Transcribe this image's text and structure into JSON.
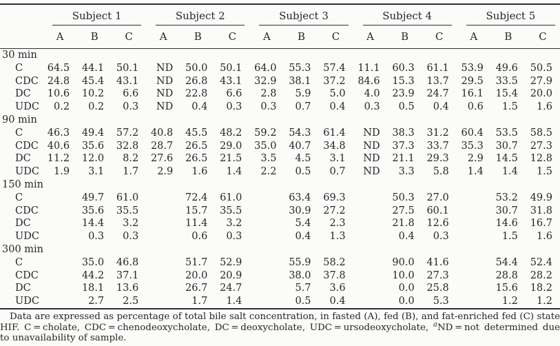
{
  "table": {
    "subjects": [
      "Subject 1",
      "Subject 2",
      "Subject 3",
      "Subject 4",
      "Subject 5"
    ],
    "condition_headers": [
      "A",
      "B",
      "C"
    ],
    "groups": [
      {
        "label": "30 min",
        "rows": [
          {
            "label": "C",
            "values": [
              "64.5",
              "44.1",
              "50.1",
              "ND",
              "50.0",
              "50.1",
              "64.0",
              "55.3",
              "57.4",
              "11.1",
              "60.3",
              "61.1",
              "53.9",
              "49.6",
              "50.5"
            ]
          },
          {
            "label": "CDC",
            "values": [
              "24.8",
              "45.4",
              "43.1",
              "ND",
              "26.8",
              "43.1",
              "32.9",
              "38.1",
              "37.2",
              "84.6",
              "15.3",
              "13.7",
              "29.5",
              "33.5",
              "27.9"
            ]
          },
          {
            "label": "DC",
            "values": [
              "10.6",
              "10.2",
              "6.6",
              "ND",
              "22.8",
              "6.6",
              "2.8",
              "5.9",
              "5.0",
              "4.0",
              "23.9",
              "24.7",
              "16.1",
              "15.4",
              "20.0"
            ]
          },
          {
            "label": "UDC",
            "values": [
              "0.2",
              "0.2",
              "0.3",
              "ND",
              "0.4",
              "0.3",
              "0.3",
              "0.7",
              "0.4",
              "0.3",
              "0.5",
              "0.4",
              "0.6",
              "1.5",
              "1.6"
            ]
          }
        ]
      },
      {
        "label": "90 min",
        "rows": [
          {
            "label": "C",
            "values": [
              "46.3",
              "49.4",
              "57.2",
              "40.8",
              "45.5",
              "48.2",
              "59.2",
              "54.3",
              "61.4",
              "ND",
              "38.3",
              "31.2",
              "60.4",
              "53.5",
              "58.5"
            ]
          },
          {
            "label": "CDC",
            "values": [
              "40.6",
              "35.6",
              "32.8",
              "28.7",
              "26.5",
              "29.0",
              "35.0",
              "40.7",
              "34.8",
              "ND",
              "37.3",
              "33.7",
              "35.3",
              "30.7",
              "27.3"
            ]
          },
          {
            "label": "DC",
            "values": [
              "11.2",
              "12.0",
              "8.2",
              "27.6",
              "26.5",
              "21.5",
              "3.5",
              "4.5",
              "3.1",
              "ND",
              "21.1",
              "29.3",
              "2.9",
              "14.5",
              "12.8"
            ]
          },
          {
            "label": "UDC",
            "values": [
              "1.9",
              "3.1",
              "1.7",
              "2.9",
              "1.6",
              "1.4",
              "2.2",
              "0.5",
              "0.7",
              "ND",
              "3.3",
              "5.8",
              "1.4",
              "1.4",
              "1.5"
            ]
          }
        ]
      },
      {
        "label": "150 min",
        "rows": [
          {
            "label": "C",
            "values": [
              "",
              "49.7",
              "61.0",
              "",
              "72.4",
              "61.0",
              "",
              "63.4",
              "69.3",
              "",
              "50.3",
              "27.0",
              "",
              "53.2",
              "49.9"
            ]
          },
          {
            "label": "CDC",
            "values": [
              "",
              "35.6",
              "35.5",
              "",
              "15.7",
              "35.5",
              "",
              "30.9",
              "27.2",
              "",
              "27.5",
              "60.1",
              "",
              "30.7",
              "31.8"
            ]
          },
          {
            "label": "DC",
            "values": [
              "",
              "14.4",
              "3.2",
              "",
              "11.4",
              "3.2",
              "",
              "5.4",
              "2.3",
              "",
              "21.8",
              "12.6",
              "",
              "14.6",
              "16.7"
            ]
          },
          {
            "label": "UDC",
            "values": [
              "",
              "0.3",
              "0.3",
              "",
              "0.6",
              "0.3",
              "",
              "0.4",
              "1.3",
              "",
              "0.4",
              "0.3",
              "",
              "1.5",
              "1.6"
            ]
          }
        ]
      },
      {
        "label": "300 min",
        "rows": [
          {
            "label": "C",
            "values": [
              "",
              "35.0",
              "46.8",
              "",
              "51.7",
              "52.9",
              "",
              "55.9",
              "58.2",
              "",
              "90.0",
              "41.6",
              "",
              "54.4",
              "52.4"
            ]
          },
          {
            "label": "CDC",
            "values": [
              "",
              "44.2",
              "37.1",
              "",
              "20.0",
              "20.9",
              "",
              "38.0",
              "37.8",
              "",
              "10.0",
              "27.3",
              "",
              "28.8",
              "28.2"
            ]
          },
          {
            "label": "DC",
            "values": [
              "",
              "18.1",
              "13.6",
              "",
              "26.7",
              "24.7",
              "",
              "5.7",
              "3.6",
              "",
              "0.0",
              "25.8",
              "",
              "15.6",
              "18.2"
            ]
          },
          {
            "label": "UDC",
            "values": [
              "",
              "2.7",
              "2.5",
              "",
              "1.7",
              "1.4",
              "",
              "0.5",
              "0.4",
              "",
              "0.0",
              "5.3",
              "",
              "1.2",
              "1.2"
            ]
          }
        ]
      }
    ]
  },
  "footnote": {
    "sentence1": "Data are expressed as percentage of total bile salt concentration, in fasted (A), fed (B), and fat-enriched fed (C) state HIF. C = cholate, CDC = chenodeoxycholate, DC = deoxycholate, UDC = ursodeoxycholate, ",
    "nd_sup": "a",
    "sentence2": "ND = not determined due to unavailability of sample."
  },
  "colors": {
    "background": "#fbfbf9",
    "text": "#262626",
    "rule": "#2e2e2e"
  }
}
